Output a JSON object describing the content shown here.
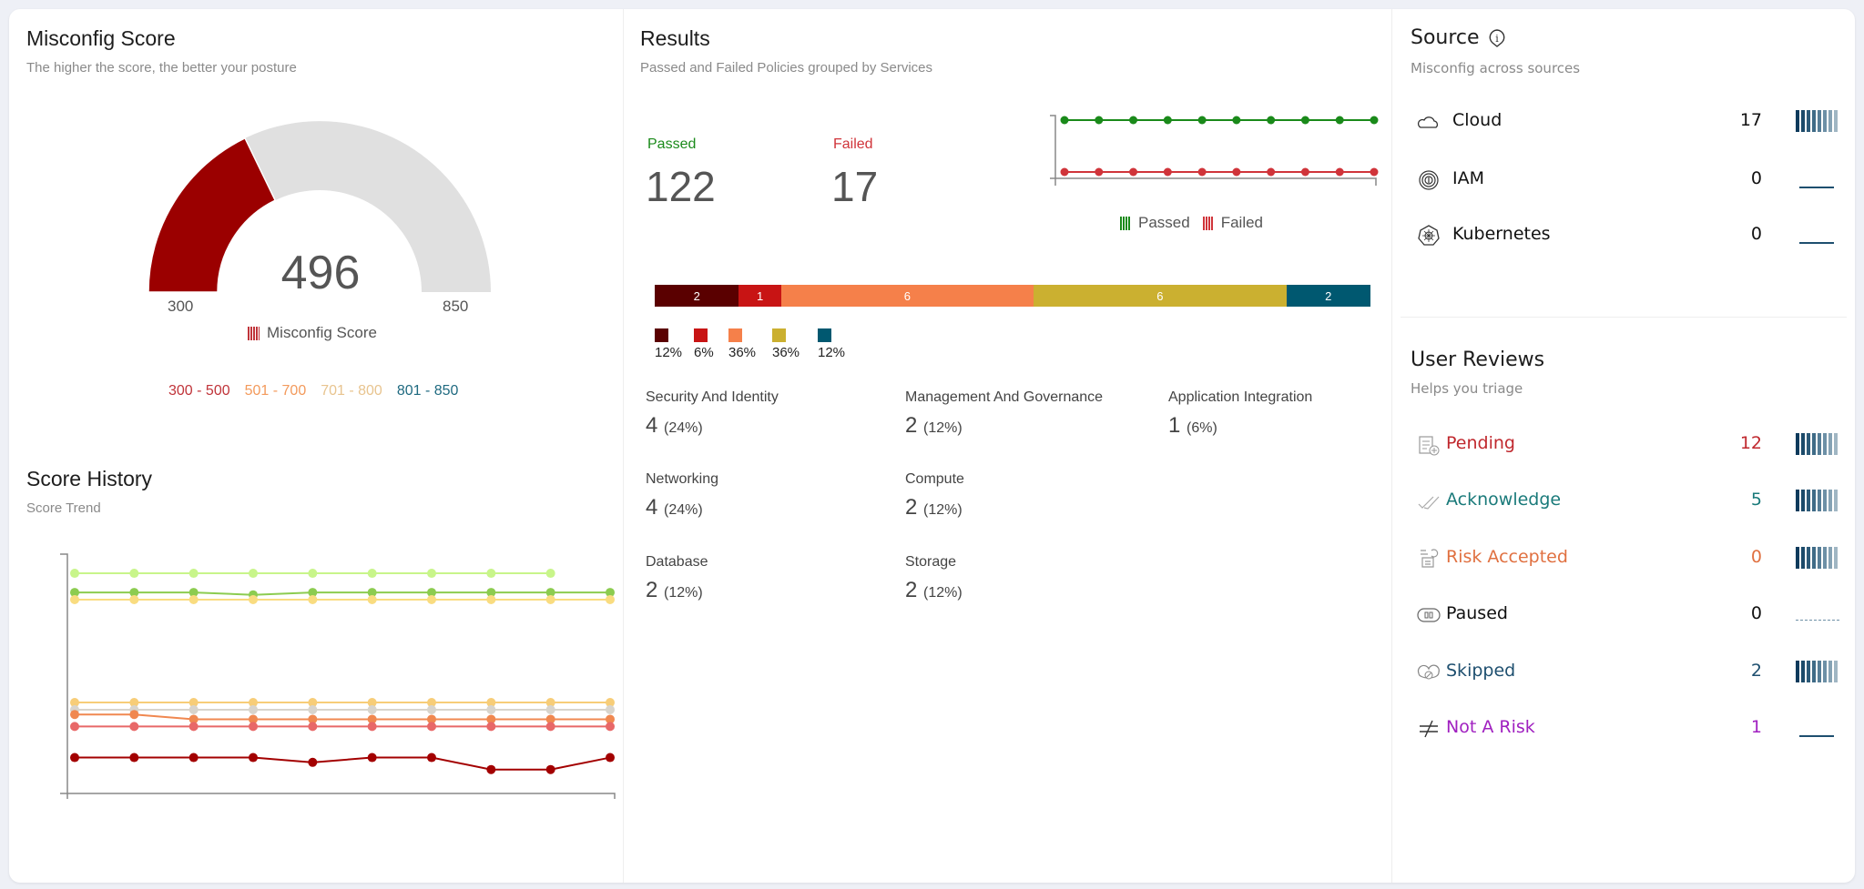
{
  "misconfig": {
    "title": "Misconfig Score",
    "subtitle": "The higher the score, the better your posture",
    "score": "496",
    "min_label": "300",
    "max_label": "850",
    "gauge": {
      "min": 300,
      "max": 850,
      "value": 496,
      "fill_color": "#9b0000",
      "track_color": "#e0e0e0"
    },
    "legend_label": "Misconfig Score",
    "ranges": [
      {
        "label": "300 - 500",
        "color": "#c0343a"
      },
      {
        "label": "501 - 700",
        "color": "#f39a5c"
      },
      {
        "label": "701 - 800",
        "color": "#e8c48f"
      },
      {
        "label": "801 - 850",
        "color": "#1f6a80"
      }
    ]
  },
  "history": {
    "title": "Score History",
    "subtitle": "Score Trend",
    "chart_data": {
      "type": "line",
      "grid": false,
      "x": [
        1,
        2,
        3,
        4,
        5,
        6,
        7,
        8,
        9,
        10
      ],
      "ylim": [
        0,
        100
      ],
      "series": [
        {
          "color": "#c8f58a",
          "values": [
            92,
            92,
            92,
            92,
            92,
            92,
            92,
            92,
            92,
            null
          ]
        },
        {
          "color": "#8ccc50",
          "values": [
            84,
            84,
            84,
            83,
            84,
            84,
            84,
            84,
            84,
            84
          ]
        },
        {
          "color": "#f9dc80",
          "values": [
            81,
            81,
            81,
            81,
            81,
            81,
            81,
            81,
            81,
            81
          ]
        },
        {
          "color": "#f7cd78",
          "values": [
            38,
            38,
            38,
            38,
            38,
            38,
            38,
            38,
            38,
            38
          ]
        },
        {
          "color": "#d8d4cc",
          "values": [
            35,
            35,
            35,
            35,
            35,
            35,
            35,
            35,
            35,
            35
          ]
        },
        {
          "color": "#f08850",
          "values": [
            33,
            33,
            31,
            31,
            31,
            31,
            31,
            31,
            31,
            31
          ]
        },
        {
          "color": "#e86868",
          "values": [
            28,
            28,
            28,
            28,
            28,
            28,
            28,
            28,
            28,
            28
          ]
        },
        {
          "color": "#a30000",
          "values": [
            15,
            15,
            15,
            15,
            13,
            15,
            15,
            10,
            10,
            15
          ]
        }
      ]
    }
  },
  "results": {
    "title": "Results",
    "subtitle": "Passed and Failed Policies grouped by Services",
    "passed_label": "Passed",
    "passed_value": "122",
    "failed_label": "Failed",
    "failed_value": "17",
    "trend_chart": {
      "type": "line",
      "x": [
        1,
        2,
        3,
        4,
        5,
        6,
        7,
        8,
        9,
        10
      ],
      "series": [
        {
          "name": "Passed",
          "color": "#1a8a1a",
          "values": [
            122,
            122,
            122,
            122,
            122,
            122,
            122,
            122,
            122,
            122
          ]
        },
        {
          "name": "Failed",
          "color": "#d0343a",
          "values": [
            17,
            17,
            17,
            17,
            17,
            17,
            17,
            17,
            17,
            17
          ]
        }
      ]
    },
    "legend": [
      {
        "label": "Passed",
        "color": "#1a8a1a"
      },
      {
        "label": "Failed",
        "color": "#d0343a"
      }
    ],
    "stacked_bar": {
      "type": "bar",
      "segments": [
        {
          "value": 2,
          "label": "2",
          "pct": "12%",
          "color": "#5a0000"
        },
        {
          "value": 1,
          "label": "1",
          "pct": "6%",
          "color": "#c81414"
        },
        {
          "value": 6,
          "label": "6",
          "pct": "36%",
          "color": "#f5804a"
        },
        {
          "value": 6,
          "label": "6",
          "pct": "36%",
          "color": "#cbb030"
        },
        {
          "value": 2,
          "label": "2",
          "pct": "12%",
          "color": "#005870"
        }
      ]
    },
    "categories": [
      {
        "name": "Security And Identity",
        "count": "4",
        "pct": "(24%)"
      },
      {
        "name": "Management And Governance",
        "count": "2",
        "pct": "(12%)"
      },
      {
        "name": "Application Integration",
        "count": "1",
        "pct": "(6%)"
      },
      {
        "name": "Networking",
        "count": "4",
        "pct": "(24%)"
      },
      {
        "name": "Compute",
        "count": "2",
        "pct": "(12%)"
      },
      {
        "name": "Database",
        "count": "2",
        "pct": "(12%)"
      },
      {
        "name": "Storage",
        "count": "2",
        "pct": "(12%)"
      }
    ]
  },
  "source": {
    "title": "Source",
    "subtitle": "Misconfig across sources",
    "items": [
      {
        "icon": "cloud-icon",
        "label": "Cloud",
        "count": "17",
        "spark": "bars"
      },
      {
        "icon": "fingerprint-icon",
        "label": "IAM",
        "count": "0",
        "spark": "line"
      },
      {
        "icon": "kubernetes-icon",
        "label": "Kubernetes",
        "count": "0",
        "spark": "line"
      }
    ]
  },
  "reviews": {
    "title": "User Reviews",
    "subtitle": "Helps you triage",
    "items": [
      {
        "icon": "clipboard-add-icon",
        "label": "Pending",
        "count": "12",
        "color": "#c0282e",
        "spark": "bars"
      },
      {
        "icon": "double-check-icon",
        "label": "Acknowledge",
        "count": "5",
        "color": "#1a7a7a",
        "spark": "bars"
      },
      {
        "icon": "risk-accepted-icon",
        "label": "Risk Accepted",
        "count": "0",
        "color": "#e07040",
        "spark": "bars"
      },
      {
        "icon": "pause-icon",
        "label": "Paused",
        "count": "0",
        "color": "#111111",
        "spark": "dashed"
      },
      {
        "icon": "skip-cloud-icon",
        "label": "Skipped",
        "count": "2",
        "color": "#1e4f6f",
        "spark": "bars"
      },
      {
        "icon": "not-equal-icon",
        "label": "Not A Risk",
        "count": "1",
        "color": "#a020c0",
        "spark": "line"
      }
    ]
  }
}
